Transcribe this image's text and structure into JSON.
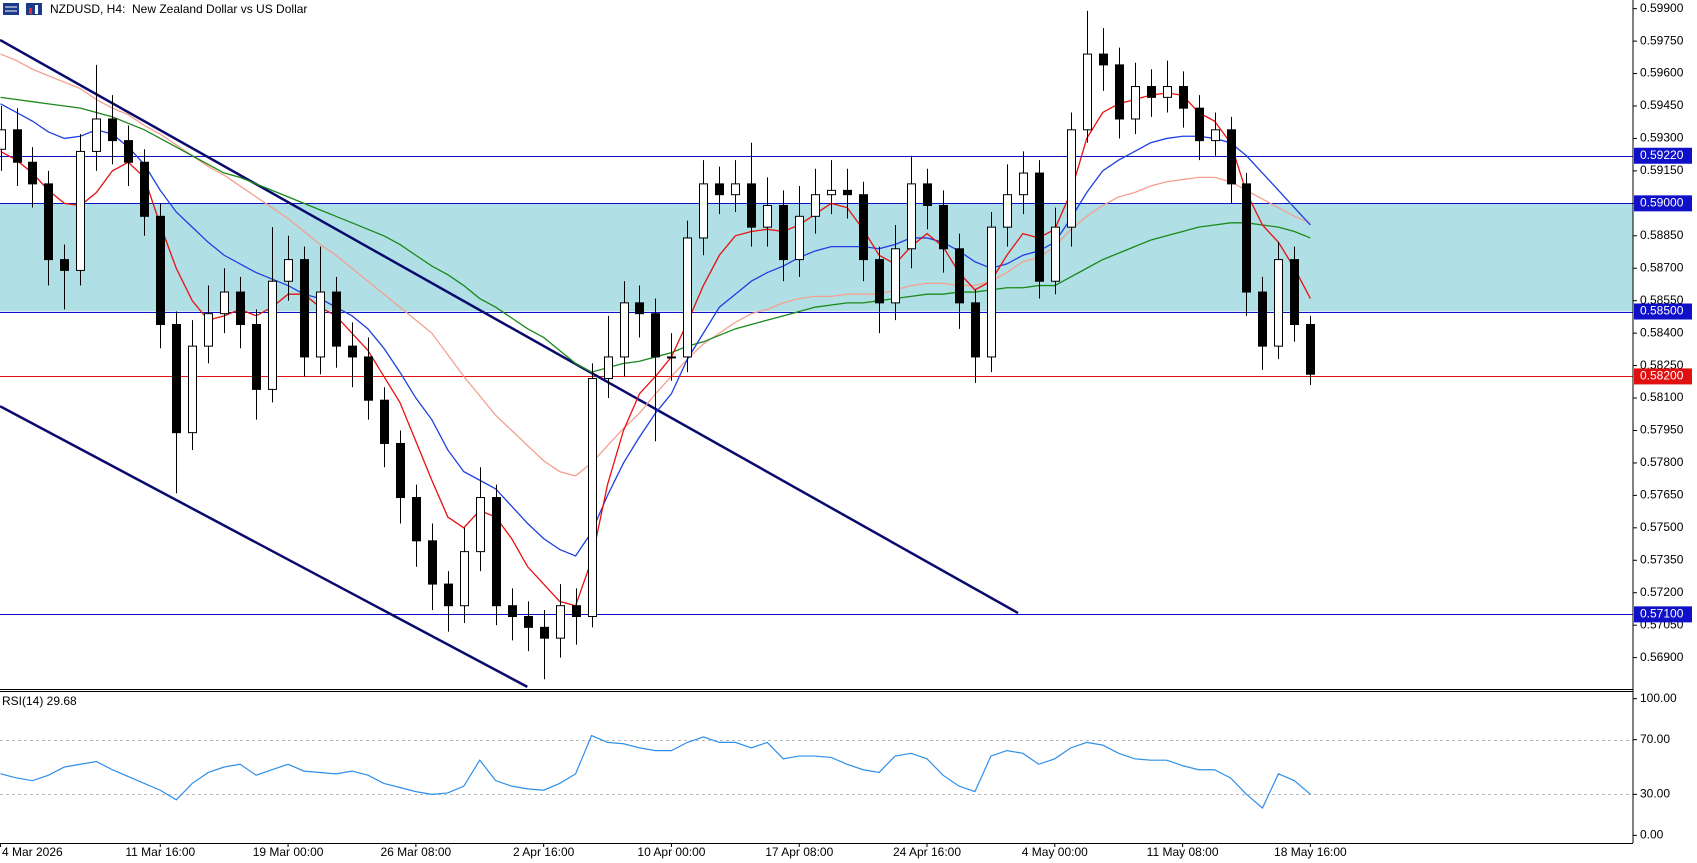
{
  "chart_data": [
    {
      "type": "candlestick",
      "title": "NZDUSD, H4:  New Zealand Dollar vs US Dollar",
      "categories": [
        "4 Mar 2026",
        null,
        null,
        null,
        null,
        null,
        null,
        null,
        null,
        null,
        "11 Mar 16:00",
        null,
        null,
        null,
        null,
        null,
        null,
        null,
        "19 Mar 00:00",
        null,
        null,
        null,
        null,
        null,
        null,
        null,
        "26 Mar 08:00",
        null,
        null,
        null,
        null,
        null,
        null,
        null,
        "2 Apr 16:00",
        null,
        null,
        null,
        null,
        null,
        null,
        null,
        "10 Apr 00:00",
        null,
        null,
        null,
        null,
        null,
        null,
        null,
        "17 Apr 08:00",
        null,
        null,
        null,
        null,
        null,
        null,
        null,
        "24 Apr 16:00",
        null,
        null,
        null,
        null,
        null,
        null,
        null,
        "4 May 00:00",
        null,
        null,
        null,
        null,
        null,
        null,
        null,
        "11 May 08:00",
        null,
        null,
        null,
        null,
        null,
        null,
        null,
        "18 May 16:00"
      ],
      "open": [
        0.5925,
        0.5934,
        0.5919,
        0.5909,
        0.5874,
        0.5869,
        0.5924,
        0.5939,
        0.5929,
        0.5919,
        0.5894,
        0.5844,
        0.5794,
        0.5834,
        0.5849,
        0.5859,
        0.5844,
        0.5814,
        0.5864,
        0.5874,
        0.5829,
        0.5859,
        0.5834,
        0.5829,
        0.5809,
        0.5789,
        0.5764,
        0.5744,
        0.5724,
        0.5714,
        0.5739,
        0.5764,
        0.5714,
        0.5709,
        0.5704,
        0.5699,
        0.5714,
        0.5709,
        0.5819,
        0.5829,
        0.5854,
        0.5849,
        0.5829,
        0.5829,
        0.5884,
        0.5909,
        0.5904,
        0.5909,
        0.5889,
        0.5899,
        0.5874,
        0.5894,
        0.5904,
        0.5906,
        0.5904,
        0.5874,
        0.5854,
        0.5879,
        0.5909,
        0.5899,
        0.5879,
        0.5854,
        0.5829,
        0.5889,
        0.5904,
        0.5914,
        0.5864,
        0.5889,
        0.5934,
        0.5969,
        0.5964,
        0.5939,
        0.5954,
        0.5949,
        0.5954,
        0.5944,
        0.5929,
        0.5934,
        0.5909,
        0.5859,
        0.5834,
        0.5874,
        0.5844
      ],
      "high": [
        0.5945,
        0.5944,
        0.5926,
        0.5915,
        0.5881,
        0.5932,
        0.5964,
        0.595,
        0.5936,
        0.5925,
        0.59,
        0.585,
        0.5846,
        0.5862,
        0.587,
        0.5866,
        0.5851,
        0.5889,
        0.5885,
        0.588,
        0.588,
        0.5866,
        0.5845,
        0.5838,
        0.5815,
        0.5795,
        0.577,
        0.5752,
        0.573,
        0.575,
        0.5778,
        0.577,
        0.5722,
        0.5716,
        0.5712,
        0.5724,
        0.5722,
        0.5826,
        0.5848,
        0.5864,
        0.5862,
        0.5856,
        0.584,
        0.5892,
        0.592,
        0.5917,
        0.592,
        0.5928,
        0.5912,
        0.5906,
        0.5908,
        0.5916,
        0.592,
        0.5916,
        0.591,
        0.588,
        0.589,
        0.5922,
        0.5916,
        0.5906,
        0.5886,
        0.586,
        0.5896,
        0.5918,
        0.5924,
        0.592,
        0.5898,
        0.5942,
        0.5989,
        0.5981,
        0.5972,
        0.5965,
        0.5962,
        0.5966,
        0.5961,
        0.595,
        0.5942,
        0.594,
        0.5914,
        0.5866,
        0.5882,
        0.588,
        0.5848
      ],
      "low": [
        0.5915,
        0.5908,
        0.5898,
        0.5862,
        0.5851,
        0.5862,
        0.5915,
        0.5918,
        0.5908,
        0.5885,
        0.5833,
        0.5766,
        0.5786,
        0.5826,
        0.584,
        0.5833,
        0.58,
        0.5808,
        0.5855,
        0.582,
        0.5821,
        0.5824,
        0.5815,
        0.58,
        0.5778,
        0.5752,
        0.5732,
        0.5712,
        0.5702,
        0.5706,
        0.573,
        0.5705,
        0.5698,
        0.5693,
        0.568,
        0.569,
        0.5696,
        0.5704,
        0.581,
        0.582,
        0.5838,
        0.579,
        0.5818,
        0.5822,
        0.5876,
        0.5895,
        0.5896,
        0.588,
        0.588,
        0.5864,
        0.5866,
        0.5886,
        0.5895,
        0.5893,
        0.5864,
        0.584,
        0.5846,
        0.587,
        0.5888,
        0.5868,
        0.5842,
        0.5817,
        0.5822,
        0.588,
        0.5895,
        0.5856,
        0.5858,
        0.588,
        0.5928,
        0.5952,
        0.593,
        0.5932,
        0.594,
        0.5942,
        0.5935,
        0.592,
        0.5922,
        0.59,
        0.5848,
        0.5823,
        0.5828,
        0.5836,
        0.5816
      ],
      "close": [
        0.5934,
        0.5919,
        0.5909,
        0.5874,
        0.5869,
        0.5924,
        0.5939,
        0.5929,
        0.5919,
        0.5894,
        0.5844,
        0.5794,
        0.5834,
        0.5849,
        0.5859,
        0.5844,
        0.5814,
        0.5864,
        0.5874,
        0.5829,
        0.5859,
        0.5834,
        0.5829,
        0.5809,
        0.5789,
        0.5764,
        0.5744,
        0.5724,
        0.5714,
        0.5739,
        0.5764,
        0.5714,
        0.5709,
        0.5704,
        0.5699,
        0.5714,
        0.5709,
        0.5819,
        0.5829,
        0.5854,
        0.5849,
        0.5829,
        0.5829,
        0.5884,
        0.5909,
        0.5904,
        0.5909,
        0.5889,
        0.5899,
        0.5874,
        0.5894,
        0.5904,
        0.5906,
        0.5904,
        0.5874,
        0.5854,
        0.5879,
        0.5909,
        0.5899,
        0.5879,
        0.5854,
        0.5829,
        0.5889,
        0.5904,
        0.5914,
        0.5864,
        0.5889,
        0.5934,
        0.5969,
        0.5964,
        0.5939,
        0.5954,
        0.5949,
        0.5954,
        0.5944,
        0.5929,
        0.5934,
        0.5909,
        0.5859,
        0.5834,
        0.5874,
        0.5844,
        0.5821
      ],
      "overlays": [
        {
          "color": "#f4a090",
          "values": [
            0.5969,
            0.5966,
            0.5962,
            0.5959,
            0.5956,
            0.5953,
            0.5948,
            0.5944,
            0.5941,
            0.5936,
            0.5932,
            0.5927,
            0.5922,
            0.5917,
            0.5913,
            0.5908,
            0.5903,
            0.5898,
            0.5893,
            0.5887,
            0.5881,
            0.5876,
            0.587,
            0.5864,
            0.5858,
            0.5852,
            0.5846,
            0.584,
            0.583,
            0.582,
            0.5811,
            0.5802,
            0.5795,
            0.5788,
            0.5781,
            0.5776,
            0.5774,
            0.578,
            0.5788,
            0.5796,
            0.5803,
            0.5812,
            0.582,
            0.5828,
            0.5835,
            0.584,
            0.5845,
            0.5849,
            0.5851,
            0.5854,
            0.5856,
            0.5857,
            0.5857,
            0.5858,
            0.5858,
            0.5858,
            0.586,
            0.5862,
            0.5863,
            0.5863,
            0.5862,
            0.5862,
            0.5864,
            0.5868,
            0.5873,
            0.5875,
            0.588,
            0.5888,
            0.5894,
            0.5899,
            0.5903,
            0.5905,
            0.5908,
            0.591,
            0.5911,
            0.5912,
            0.5912,
            0.591,
            0.5906,
            0.5902,
            0.5898,
            0.5894,
            0.5891
          ]
        },
        {
          "color": "#1a8a1a",
          "values": [
            0.5949,
            0.5948,
            0.5947,
            0.5946,
            0.5945,
            0.5944,
            0.5942,
            0.594,
            0.5937,
            0.5934,
            0.593,
            0.5926,
            0.5922,
            0.5918,
            0.5914,
            0.5912,
            0.5909,
            0.5906,
            0.5903,
            0.59,
            0.5897,
            0.5894,
            0.5891,
            0.5888,
            0.5885,
            0.5881,
            0.5876,
            0.5871,
            0.5867,
            0.5862,
            0.5856,
            0.5852,
            0.5847,
            0.5842,
            0.5838,
            0.5832,
            0.5826,
            0.5822,
            0.5824,
            0.5826,
            0.5827,
            0.5829,
            0.5831,
            0.5834,
            0.5836,
            0.5839,
            0.5842,
            0.5844,
            0.5846,
            0.5848,
            0.585,
            0.5852,
            0.5853,
            0.5854,
            0.5854,
            0.5855,
            0.5856,
            0.5857,
            0.5858,
            0.5858,
            0.5859,
            0.5859,
            0.586,
            0.5861,
            0.5861,
            0.5862,
            0.5862,
            0.5866,
            0.587,
            0.5874,
            0.5877,
            0.588,
            0.5883,
            0.5885,
            0.5887,
            0.5889,
            0.589,
            0.5891,
            0.5891,
            0.589,
            0.5889,
            0.5887,
            0.5884
          ]
        },
        {
          "color": "#1f3fe0",
          "values": [
            0.5946,
            0.5942,
            0.5938,
            0.5933,
            0.593,
            0.5931,
            0.5934,
            0.5932,
            0.5926,
            0.5918,
            0.5906,
            0.5896,
            0.5889,
            0.5882,
            0.5876,
            0.5872,
            0.5868,
            0.5865,
            0.5862,
            0.5858,
            0.5856,
            0.5852,
            0.5848,
            0.5842,
            0.5833,
            0.5822,
            0.581,
            0.58,
            0.5786,
            0.5776,
            0.5772,
            0.5768,
            0.576,
            0.5752,
            0.5745,
            0.574,
            0.5737,
            0.5748,
            0.5765,
            0.578,
            0.5792,
            0.5803,
            0.5812,
            0.5828,
            0.584,
            0.5852,
            0.5858,
            0.5864,
            0.5868,
            0.5871,
            0.5875,
            0.5878,
            0.588,
            0.588,
            0.588,
            0.5879,
            0.5881,
            0.5884,
            0.5884,
            0.5882,
            0.5878,
            0.5873,
            0.587,
            0.5872,
            0.5876,
            0.5878,
            0.5882,
            0.5893,
            0.5905,
            0.5915,
            0.592,
            0.5924,
            0.5928,
            0.593,
            0.5931,
            0.5931,
            0.593,
            0.5928,
            0.5922,
            0.5914,
            0.5906,
            0.5898,
            0.589
          ]
        },
        {
          "color": "#e81010",
          "values": [
            0.5924,
            0.592,
            0.5914,
            0.5906,
            0.59,
            0.5899,
            0.5905,
            0.5915,
            0.5919,
            0.5912,
            0.589,
            0.587,
            0.5855,
            0.5846,
            0.5848,
            0.5851,
            0.5848,
            0.5852,
            0.5858,
            0.5858,
            0.5852,
            0.5848,
            0.584,
            0.5832,
            0.582,
            0.5808,
            0.579,
            0.5772,
            0.5755,
            0.575,
            0.5758,
            0.5755,
            0.5745,
            0.5732,
            0.5724,
            0.5716,
            0.5714,
            0.5735,
            0.577,
            0.5795,
            0.5812,
            0.582,
            0.5829,
            0.5845,
            0.5862,
            0.5876,
            0.5885,
            0.5887,
            0.5888,
            0.5887,
            0.589,
            0.5895,
            0.59,
            0.5898,
            0.5888,
            0.5876,
            0.5872,
            0.588,
            0.5886,
            0.588,
            0.5868,
            0.586,
            0.5864,
            0.5876,
            0.5886,
            0.5884,
            0.5888,
            0.5905,
            0.593,
            0.5942,
            0.5946,
            0.5948,
            0.595,
            0.5951,
            0.595,
            0.5942,
            0.5938,
            0.5928,
            0.5905,
            0.589,
            0.5882,
            0.587,
            0.5856
          ]
        }
      ],
      "trendlines": [
        {
          "color": "#0a0a6e",
          "x": [
            -0.03,
            63.7
          ],
          "values": [
            0.59755,
            0.57106
          ]
        },
        {
          "color": "#0a0a6e",
          "x": [
            -0.03,
            32.98
          ],
          "values": [
            0.58062,
            0.56765
          ]
        }
      ],
      "zone": {
        "range": [
          0.585,
          0.59
        ],
        "color": "#b0dfe5"
      },
      "levels": [
        {
          "value": 0.5922,
          "label": "0.59220",
          "color": "#1010c8"
        },
        {
          "value": 0.59,
          "label": "0.59000",
          "color": "#1010c8"
        },
        {
          "value": 0.585,
          "label": "0.58500",
          "color": "#1010c8"
        },
        {
          "value": 0.582,
          "label": "0.58200",
          "color": "#e01010"
        },
        {
          "value": 0.571,
          "label": "0.57100",
          "color": "#1010c8"
        }
      ],
      "ylim": [
        0.56755,
        0.5994
      ],
      "yticks": [
        {
          "value": 0.599,
          "label": "0.59900"
        },
        {
          "value": 0.5975,
          "label": "0.59750"
        },
        {
          "value": 0.596,
          "label": "0.59600"
        },
        {
          "value": 0.5945,
          "label": "0.59450"
        },
        {
          "value": 0.593,
          "label": "0.59300"
        },
        {
          "value": 0.5915,
          "label": "0.59150"
        },
        {
          "value": 0.59,
          "label": "0.59000"
        },
        {
          "value": 0.5885,
          "label": "0.58850"
        },
        {
          "value": 0.587,
          "label": "0.58700"
        },
        {
          "value": 0.5855,
          "label": "0.58550"
        },
        {
          "value": 0.584,
          "label": "0.58400"
        },
        {
          "value": 0.5825,
          "label": "0.58250"
        },
        {
          "value": 0.581,
          "label": "0.58100"
        },
        {
          "value": 0.5795,
          "label": "0.57950"
        },
        {
          "value": 0.578,
          "label": "0.57800"
        },
        {
          "value": 0.5765,
          "label": "0.57650"
        },
        {
          "value": 0.575,
          "label": "0.57500"
        },
        {
          "value": 0.5735,
          "label": "0.57350"
        },
        {
          "value": 0.572,
          "label": "0.57200"
        },
        {
          "value": 0.5705,
          "label": "0.57050"
        },
        {
          "value": 0.569,
          "label": "0.56900"
        }
      ]
    },
    {
      "type": "line",
      "title": "RSI(14) 29.68",
      "color": "#2f8fe8",
      "values": [
        45,
        42,
        40,
        44,
        50,
        52,
        54,
        48,
        43,
        38,
        33,
        26,
        38,
        46,
        50,
        52,
        44,
        48,
        52,
        47,
        46,
        45,
        47,
        44,
        38,
        35,
        32,
        30,
        31,
        36,
        55,
        40,
        36,
        34,
        33,
        38,
        45,
        73,
        68,
        67,
        64,
        62,
        62,
        68,
        72,
        68,
        68,
        64,
        68,
        56,
        58,
        58,
        57,
        52,
        48,
        46,
        58,
        60,
        56,
        44,
        36,
        32,
        58,
        62,
        60,
        52,
        56,
        64,
        68,
        66,
        60,
        56,
        55,
        55,
        51,
        48,
        48,
        42,
        30,
        20,
        45,
        40,
        30
      ],
      "levels": [
        70,
        30
      ],
      "ylim": [
        -5.6,
        105.6
      ],
      "yticks": [
        {
          "value": 100,
          "label": "100.00"
        },
        {
          "value": 70,
          "label": "70.00"
        },
        {
          "value": 30,
          "label": "30.00"
        },
        {
          "value": 0,
          "label": "0.00"
        }
      ]
    }
  ]
}
